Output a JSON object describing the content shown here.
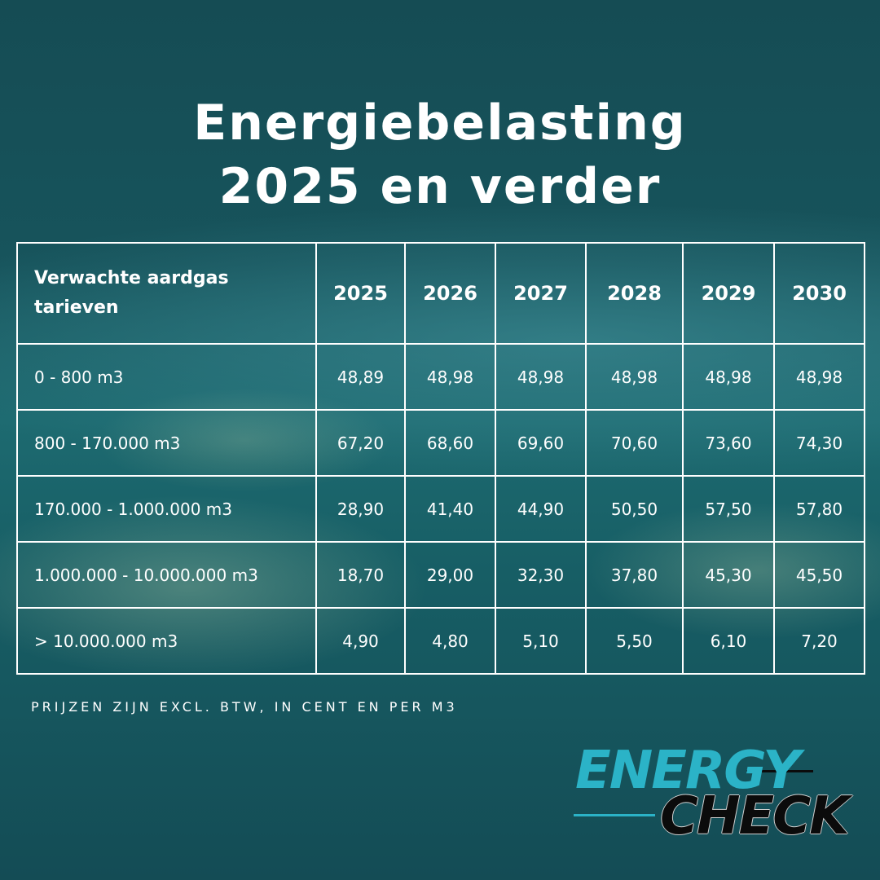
{
  "title": {
    "line1": "Energiebelasting",
    "line2": "2025 en verder"
  },
  "table": {
    "row_header": "Verwachte aardgas tarieven",
    "years": [
      "2025",
      "2026",
      "2027",
      "2028",
      "2029",
      "2030"
    ],
    "rows": [
      {
        "range": "0 - 800 m3",
        "values": [
          "48,89",
          "48,98",
          "48,98",
          "48,98",
          "48,98",
          "48,98"
        ]
      },
      {
        "range": "800 - 170.000 m3",
        "values": [
          "67,20",
          "68,60",
          "69,60",
          "70,60",
          "73,60",
          "74,30"
        ]
      },
      {
        "range": "170.000 - 1.000.000 m3",
        "values": [
          "28,90",
          "41,40",
          "44,90",
          "50,50",
          "57,50",
          "57,80"
        ]
      },
      {
        "range": "1.000.000 - 10.000.000 m3",
        "values": [
          "18,70",
          "29,00",
          "32,30",
          "37,80",
          "45,30",
          "45,50"
        ]
      },
      {
        "range": "> 10.000.000 m3",
        "values": [
          "4,90",
          "4,80",
          "5,10",
          "5,50",
          "6,10",
          "7,20"
        ]
      }
    ]
  },
  "footnote": "PRIJZEN ZIJN EXCL. BTW, IN CENT EN PER M3",
  "logo": {
    "top": "ENERGY",
    "bottom": "CHECK",
    "accent_color": "#2bb3c7"
  }
}
